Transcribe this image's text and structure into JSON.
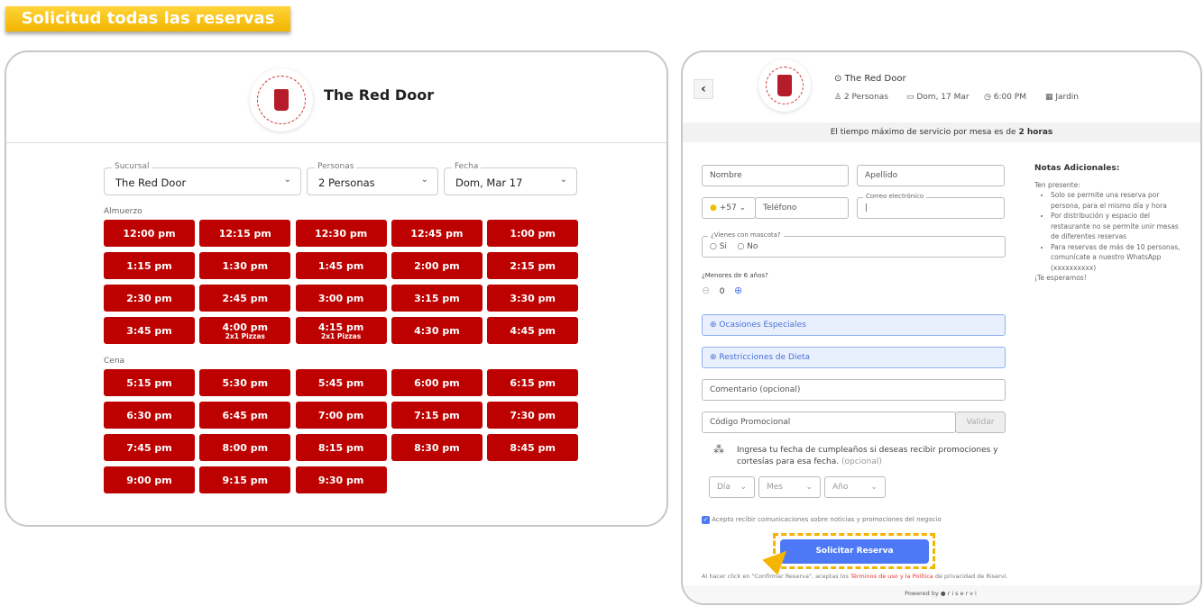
{
  "banner": "Solicitud todas las reservas",
  "left": {
    "restaurant": "The Red Door",
    "filters": [
      {
        "label": "Sucursal",
        "value": "The Red Door"
      },
      {
        "label": "Personas",
        "value": "2 Personas"
      },
      {
        "label": "Fecha",
        "value": "Dom, Mar 17"
      }
    ],
    "sections": [
      {
        "name": "Almuerzo",
        "slots": [
          {
            "time": "12:00 pm"
          },
          {
            "time": "12:15 pm"
          },
          {
            "time": "12:30 pm"
          },
          {
            "time": "12:45 pm"
          },
          {
            "time": "1:00 pm"
          },
          {
            "time": "1:15 pm"
          },
          {
            "time": "1:30 pm"
          },
          {
            "time": "1:45 pm"
          },
          {
            "time": "2:00 pm"
          },
          {
            "time": "2:15 pm"
          },
          {
            "time": "2:30 pm"
          },
          {
            "time": "2:45 pm"
          },
          {
            "time": "3:00 pm"
          },
          {
            "time": "3:15 pm"
          },
          {
            "time": "3:30 pm"
          },
          {
            "time": "3:45 pm"
          },
          {
            "time": "4:00 pm",
            "promo": "2x1 Pizzas"
          },
          {
            "time": "4:15 pm",
            "promo": "2x1 Pizzas"
          },
          {
            "time": "4:30 pm"
          },
          {
            "time": "4:45 pm"
          }
        ]
      },
      {
        "name": "Cena",
        "slots": [
          {
            "time": "5:15 pm"
          },
          {
            "time": "5:30 pm"
          },
          {
            "time": "5:45 pm"
          },
          {
            "time": "6:00 pm"
          },
          {
            "time": "6:15 pm"
          },
          {
            "time": "6:30 pm"
          },
          {
            "time": "6:45 pm"
          },
          {
            "time": "7:00 pm"
          },
          {
            "time": "7:15 pm"
          },
          {
            "time": "7:30 pm"
          },
          {
            "time": "7:45 pm"
          },
          {
            "time": "8:00 pm"
          },
          {
            "time": "8:15 pm"
          },
          {
            "time": "8:30 pm"
          },
          {
            "time": "8:45 pm"
          },
          {
            "time": "9:00 pm"
          },
          {
            "time": "9:15 pm"
          },
          {
            "time": "9:30 pm"
          }
        ]
      }
    ],
    "slot_color": "#bd0000"
  },
  "right": {
    "location": "The Red Door",
    "people": "2 Personas",
    "date": "Dom, 17 Mar",
    "time": "6:00 PM",
    "area": "Jardin",
    "notice": "El tiempo máximo de servicio por mesa es de ",
    "notice_bold": "2 horas",
    "nombre": "Nombre",
    "apellido": "Apellido",
    "country_code": "+57",
    "telefono": "Teléfono",
    "correo_label": "Correo electrónico",
    "pet_label": "¿Vienes con mascota?",
    "pet_yes": "Si",
    "pet_no": "No",
    "kids_label": "¿Menores de 6 años?",
    "kids_value": "0",
    "ocasiones": "Ocasiones Especiales",
    "dieta": "Restricciones de Dieta",
    "comentario": "Comentario (opcional)",
    "codigo": "Código Promocional",
    "validar": "Validar",
    "birthday_text": "Ingresa tu fecha de cumpleaños si deseas recibir promociones y cortesías para esa fecha.",
    "birthday_optional": " (opcional)",
    "dia": "Día",
    "mes": "Mes",
    "anio": "Año",
    "consent": "Acepto recibir comunicaciones sobre noticias y promociones del negocio",
    "consent_checked": true,
    "submit": "Solicitar Reserva",
    "legal_pre": "Al hacer click en \"Confirmar Reserva\", aceptas los ",
    "legal_link": "Términos de uso y la Política",
    "legal_post": " de privacidad de Riservi.",
    "powered": "Powered by",
    "brand": "riservi",
    "notes": {
      "title": "Notas Adicionales:",
      "intro": "Ten presente:",
      "items": [
        "Solo se permite una reserva por persona, para el mismo día y hora",
        "Por distribución y espacio del restaurante no se permite unir mesas de diferentes reservas",
        "Para reservas de más de 10 personas, comunícate a nuestro WhatsApp (xxxxxxxxxx)"
      ],
      "outro": "¡Te esperamos!"
    },
    "accent": "#4d79f7"
  }
}
